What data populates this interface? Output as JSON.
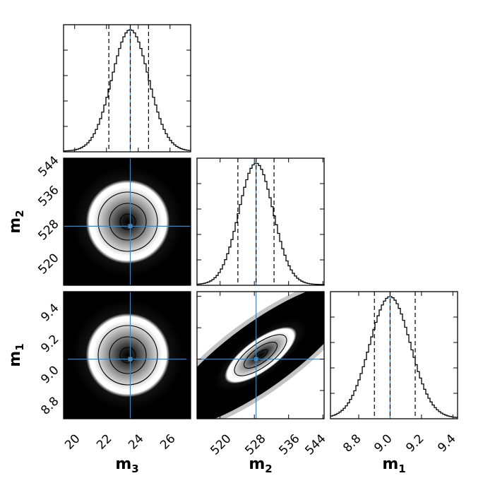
{
  "colors": {
    "truth_line": "#4682b4",
    "hist_line": "#000000",
    "frame": "#000000",
    "density_dark": "#000000",
    "density_light": "#ffffff"
  },
  "chart_data": {
    "type": "corner",
    "parameters": [
      {
        "id": "m3",
        "label_base": "m",
        "label_sub": "3",
        "truth": 23.5,
        "median": 23.5,
        "q_low": 22.15,
        "q_high": 24.65,
        "sigma": 1.15,
        "range": [
          19.3,
          27.3
        ],
        "ticks": [
          20,
          22,
          24,
          26
        ]
      },
      {
        "id": "m2",
        "label_base": "m",
        "label_sub": "2",
        "truth": 528.4,
        "median": 528.4,
        "q_low": 524.15,
        "q_high": 532.6,
        "sigma": 4.0,
        "range": [
          514.6,
          544.3
        ],
        "ticks": [
          520,
          528,
          536,
          544
        ]
      },
      {
        "id": "m1",
        "label_base": "m",
        "label_sub": "1",
        "truth": 9.0,
        "median": 9.0,
        "q_low": 8.9,
        "q_high": 9.16,
        "sigma": 0.13,
        "range": [
          8.62,
          9.43
        ],
        "ticks": [
          8.8,
          9.0,
          9.2,
          9.4
        ]
      }
    ],
    "panels": [
      {
        "kind": "hist",
        "param": "m3",
        "title": ""
      },
      {
        "kind": "hist",
        "param": "m2",
        "title": ""
      },
      {
        "kind": "hist",
        "param": "m1",
        "title": ""
      },
      {
        "kind": "density",
        "x": "m3",
        "y": "m2",
        "correlation": 0.0
      },
      {
        "kind": "density",
        "x": "m3",
        "y": "m1",
        "correlation": 0.0
      },
      {
        "kind": "density",
        "x": "m2",
        "y": "m1",
        "correlation": 0.85
      }
    ],
    "tick_labels": {
      "m3": [
        "20",
        "22",
        "24",
        "26"
      ],
      "m2": [
        "520",
        "528",
        "536",
        "544"
      ],
      "m1": [
        "8.8",
        "9.0",
        "9.2",
        "9.4"
      ]
    },
    "bottom_axis_labels": [
      {
        "base": "m",
        "sub": "3"
      },
      {
        "base": "m",
        "sub": "2"
      },
      {
        "base": "m",
        "sub": "1"
      }
    ],
    "left_axis_labels": [
      {
        "base": "m",
        "sub": "2"
      },
      {
        "base": "m",
        "sub": "1"
      }
    ],
    "contour_levels_sigma": [
      0.5,
      1.0,
      1.5
    ],
    "grid": false,
    "legend": "none"
  }
}
